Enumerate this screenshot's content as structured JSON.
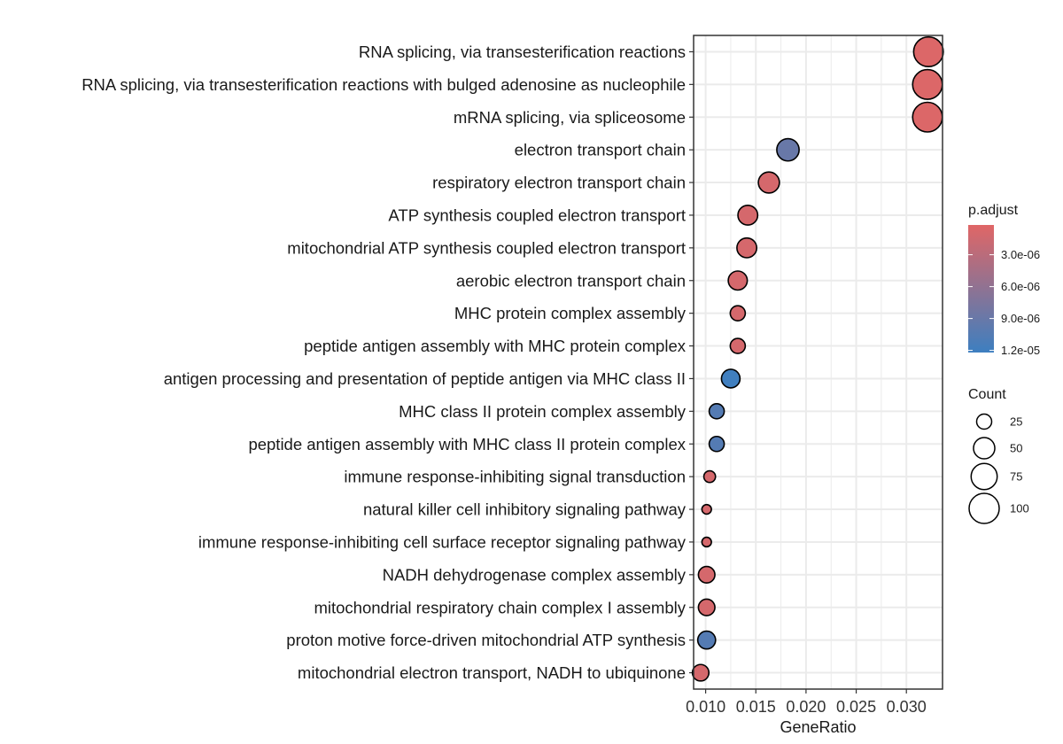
{
  "chart_data": {
    "type": "scatter",
    "subtype": "dotplot",
    "xlabel": "GeneRatio",
    "xlim": [
      0.0088,
      0.0336
    ],
    "x_ticks": [
      0.01,
      0.015,
      0.02,
      0.025,
      0.03
    ],
    "x_tick_labels": [
      "0.010",
      "0.015",
      "0.020",
      "0.025",
      "0.030"
    ],
    "categories": [
      "RNA splicing, via transesterification reactions",
      "RNA splicing, via transesterification reactions with bulged adenosine as nucleophile",
      "mRNA splicing, via spliceosome",
      "electron transport chain",
      "respiratory electron transport chain",
      "ATP synthesis coupled electron transport",
      "mitochondrial ATP synthesis coupled electron transport",
      "aerobic electron transport chain",
      "MHC protein complex assembly",
      "peptide antigen assembly with MHC protein complex",
      "antigen processing and presentation of peptide antigen via MHC class II",
      "MHC class II protein complex assembly",
      "peptide antigen assembly with MHC class II protein complex",
      "immune response-inhibiting signal transduction",
      "natural killer cell inhibitory signaling pathway",
      "immune response-inhibiting cell surface receptor signaling pathway",
      "NADH dehydrogenase complex assembly",
      "mitochondrial respiratory chain complex I assembly",
      "proton motive force-driven mitochondrial ATP synthesis",
      "mitochondrial electron transport, NADH to ubiquinone"
    ],
    "gene_ratio": [
      0.0322,
      0.0321,
      0.0321,
      0.0182,
      0.0163,
      0.0142,
      0.0141,
      0.0132,
      0.0132,
      0.0132,
      0.0125,
      0.0111,
      0.0111,
      0.0104,
      0.0101,
      0.0101,
      0.0101,
      0.0101,
      0.0101,
      0.0095
    ],
    "count": [
      97,
      97,
      97,
      55,
      49,
      43,
      43,
      40,
      25,
      25,
      38,
      25,
      25,
      15,
      10,
      10,
      30,
      30,
      35,
      30
    ],
    "p_adjust": [
      5e-07,
      5e-07,
      5e-07,
      9e-06,
      1e-06,
      1e-06,
      1e-06,
      1e-06,
      1e-06,
      1e-06,
      1.2e-05,
      1.05e-05,
      1.05e-05,
      1e-06,
      1e-06,
      1e-06,
      1e-06,
      1e-06,
      1.05e-05,
      1e-06
    ],
    "color_legend": {
      "title": "p.adjust",
      "ticks": [
        3e-06,
        6e-06,
        9e-06,
        1.2e-05
      ],
      "tick_labels": [
        "3.0e-06",
        "6.0e-06",
        "9.0e-06",
        "1.2e-05"
      ],
      "range": [
        2e-07,
        1.22e-05
      ],
      "low_color": "#e06666",
      "high_color": "#3d7fc0"
    },
    "size_legend": {
      "title": "Count",
      "values": [
        25,
        50,
        75,
        100
      ],
      "labels": [
        "25",
        "50",
        "75",
        "100"
      ]
    },
    "grid": true,
    "point_edge_color": "#000000",
    "panel_border_color": "#333333",
    "grid_color": "#ebebeb"
  }
}
